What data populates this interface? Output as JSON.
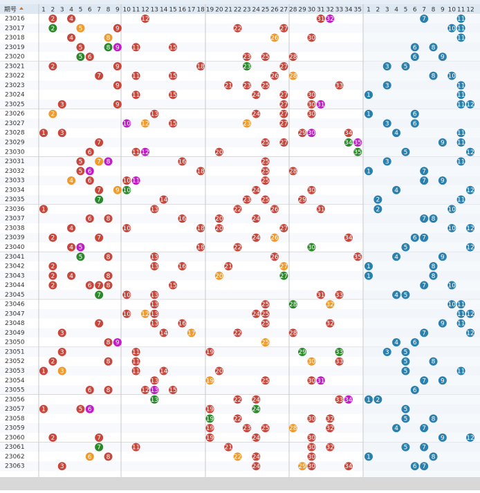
{
  "header": {
    "issue_label": "期号",
    "front_columns": [
      1,
      2,
      3,
      4,
      5,
      6,
      7,
      8,
      9,
      10,
      11,
      12,
      13,
      14,
      15,
      16,
      17,
      18,
      19,
      20,
      21,
      22,
      23,
      24,
      25,
      26,
      27,
      28,
      29,
      30,
      31,
      32,
      33,
      34,
      35
    ],
    "back_columns": [
      1,
      2,
      3,
      4,
      5,
      6,
      7,
      8,
      9,
      10,
      11,
      12
    ]
  },
  "front_color": "#c8473c",
  "back_color": "#2c80ad",
  "rows": [
    {
      "id": "23016",
      "front": [
        2,
        4,
        12,
        31,
        32
      ],
      "back": [
        7,
        11
      ],
      "special": {
        "31": "#c8473c",
        "32": "#c21cc8"
      }
    },
    {
      "id": "23017",
      "front": [
        2,
        5,
        9,
        22,
        27
      ],
      "back": [
        10,
        11
      ],
      "special": {
        "2": "#2a8a2a",
        "5": "#f09a2c"
      }
    },
    {
      "id": "23018",
      "front": [
        4,
        8,
        26,
        30
      ],
      "back": [
        11
      ],
      "special": {
        "8": "#f09a2c",
        "26": "#f09a2c"
      }
    },
    {
      "id": "23019",
      "front": [
        5,
        8,
        9,
        11,
        15
      ],
      "back": [
        6,
        8
      ],
      "special": {
        "8": "#2a8a2a",
        "9": "#c21cc8"
      }
    },
    {
      "id": "23020",
      "front": [
        5,
        6,
        23,
        25,
        28
      ],
      "back": [
        6,
        9
      ],
      "special": {
        "5": "#2a8a2a"
      }
    },
    {
      "id": "23021",
      "front": [
        2,
        9,
        18,
        23,
        27
      ],
      "back": [
        3,
        5
      ],
      "special": {
        "23": "#2a8a2a"
      }
    },
    {
      "id": "23022",
      "front": [
        7,
        11,
        15,
        26,
        28
      ],
      "back": [
        8,
        10
      ],
      "special": {
        "28": "#f09a2c"
      }
    },
    {
      "id": "23023",
      "front": [
        9,
        21,
        23,
        25,
        33
      ],
      "back": [
        3,
        11
      ],
      "special": {}
    },
    {
      "id": "23024",
      "front": [
        11,
        15,
        24,
        27,
        30
      ],
      "back": [
        1,
        11
      ],
      "special": {}
    },
    {
      "id": "23025",
      "front": [
        3,
        9,
        27,
        30,
        31
      ],
      "back": [
        11,
        12
      ],
      "special": {
        "31": "#c21cc8"
      }
    },
    {
      "id": "23026",
      "front": [
        2,
        13,
        24,
        27,
        30
      ],
      "back": [
        1,
        6
      ],
      "special": {
        "2": "#f09a2c"
      }
    },
    {
      "id": "23027",
      "front": [
        10,
        12,
        15,
        23,
        27
      ],
      "back": [
        3,
        6
      ],
      "special": {
        "10": "#c21cc8",
        "12": "#f09a2c",
        "23": "#f09a2c"
      }
    },
    {
      "id": "23028",
      "front": [
        1,
        3,
        29,
        30,
        34
      ],
      "back": [
        4,
        11
      ],
      "special": {
        "30": "#c21cc8"
      }
    },
    {
      "id": "23029",
      "front": [
        7,
        25,
        27,
        34,
        35
      ],
      "back": [
        9,
        11
      ],
      "special": {
        "34": "#2a8a2a",
        "35": "#c21cc8"
      }
    },
    {
      "id": "23030",
      "front": [
        6,
        11,
        12,
        20,
        35
      ],
      "back": [
        5,
        12
      ],
      "special": {
        "12": "#c21cc8",
        "35": "#2a8a2a"
      }
    },
    {
      "id": "23031",
      "front": [
        5,
        7,
        8,
        16,
        25
      ],
      "back": [
        3,
        11
      ],
      "special": {
        "7": "#f09a2c",
        "8": "#c21cc8"
      }
    },
    {
      "id": "23032",
      "front": [
        5,
        6,
        18,
        25,
        28
      ],
      "back": [
        1,
        7
      ],
      "special": {
        "6": "#c21cc8"
      }
    },
    {
      "id": "23033",
      "front": [
        4,
        6,
        10,
        11,
        25
      ],
      "back": [
        7,
        9
      ],
      "special": {
        "4": "#f09a2c",
        "11": "#c21cc8"
      }
    },
    {
      "id": "23034",
      "front": [
        7,
        9,
        10,
        24,
        30
      ],
      "back": [
        4,
        12
      ],
      "special": {
        "9": "#f09a2c",
        "10": "#2a8a2a"
      }
    },
    {
      "id": "23035",
      "front": [
        7,
        14,
        23,
        25,
        29
      ],
      "back": [
        2,
        11
      ],
      "special": {
        "7": "#2a8a2a"
      }
    },
    {
      "id": "23036",
      "front": [
        1,
        13,
        22,
        26,
        31
      ],
      "back": [
        2,
        10
      ],
      "special": {}
    },
    {
      "id": "23037",
      "front": [
        6,
        8,
        16,
        20,
        24
      ],
      "back": [
        7,
        8
      ],
      "special": {}
    },
    {
      "id": "23038",
      "front": [
        4,
        10,
        18,
        20,
        27
      ],
      "back": [
        10,
        12
      ],
      "special": {}
    },
    {
      "id": "23039",
      "front": [
        2,
        7,
        24,
        26,
        34
      ],
      "back": [
        6,
        7
      ],
      "special": {
        "26": "#f09a2c"
      }
    },
    {
      "id": "23040",
      "front": [
        4,
        5,
        18,
        22,
        30
      ],
      "back": [
        5,
        12
      ],
      "special": {
        "5": "#c21cc8",
        "30": "#2a8a2a"
      }
    },
    {
      "id": "23041",
      "front": [
        5,
        8,
        13,
        26,
        35
      ],
      "back": [
        4,
        9
      ],
      "special": {
        "5": "#2a8a2a"
      }
    },
    {
      "id": "23042",
      "front": [
        2,
        13,
        16,
        21,
        27
      ],
      "back": [
        1,
        8
      ],
      "special": {
        "27": "#f09a2c"
      }
    },
    {
      "id": "23043",
      "front": [
        2,
        4,
        8,
        20,
        27
      ],
      "back": [
        1,
        8
      ],
      "special": {
        "20": "#f09a2c",
        "27": "#2a8a2a"
      }
    },
    {
      "id": "23044",
      "front": [
        2,
        6,
        7,
        8,
        15
      ],
      "back": [
        7,
        10
      ],
      "special": {}
    },
    {
      "id": "23045",
      "front": [
        7,
        10,
        13,
        31,
        33
      ],
      "back": [
        4,
        5
      ],
      "special": {
        "7": "#2a8a2a"
      }
    },
    {
      "id": "23046",
      "front": [
        13,
        25,
        28,
        32
      ],
      "back": [
        10,
        11
      ],
      "special": {
        "28": "#2a8a2a",
        "32": "#f09a2c"
      }
    },
    {
      "id": "23047",
      "front": [
        10,
        12,
        13,
        24,
        25
      ],
      "back": [
        11,
        12
      ],
      "special": {
        "12": "#f09a2c"
      }
    },
    {
      "id": "23048",
      "front": [
        7,
        13,
        16,
        25,
        32
      ],
      "back": [
        9,
        11
      ],
      "special": {}
    },
    {
      "id": "23049",
      "front": [
        3,
        14,
        17,
        22,
        28
      ],
      "back": [
        7,
        12
      ],
      "special": {
        "17": "#f09a2c"
      }
    },
    {
      "id": "23050",
      "front": [
        8,
        9,
        25
      ],
      "back": [
        4,
        6
      ],
      "special": {
        "9": "#c21cc8",
        "25": "#f09a2c"
      }
    },
    {
      "id": "23051",
      "front": [
        3,
        11,
        19,
        29,
        33
      ],
      "back": [
        3,
        5
      ],
      "special": {
        "29": "#2a8a2a",
        "33": "#2a8a2a"
      }
    },
    {
      "id": "23052",
      "front": [
        2,
        8,
        11,
        30,
        33
      ],
      "back": [
        5,
        8
      ],
      "special": {
        "30": "#f09a2c"
      }
    },
    {
      "id": "23053",
      "front": [
        1,
        3,
        11,
        14,
        20
      ],
      "back": [
        5,
        11
      ],
      "special": {
        "3": "#f09a2c"
      }
    },
    {
      "id": "23054",
      "front": [
        13,
        19,
        25,
        30,
        31
      ],
      "back": [
        7,
        9
      ],
      "special": {
        "19": "#f09a2c",
        "31": "#c21cc8"
      }
    },
    {
      "id": "23055",
      "front": [
        6,
        8,
        12,
        13,
        15
      ],
      "back": [
        6
      ],
      "special": {
        "13": "#c21cc8"
      }
    },
    {
      "id": "23056",
      "front": [
        13,
        22,
        24,
        33,
        34
      ],
      "back": [
        1,
        2
      ],
      "special": {
        "13": "#2a8a2a",
        "34": "#c21cc8"
      }
    },
    {
      "id": "23057",
      "front": [
        1,
        5,
        6,
        19,
        24
      ],
      "back": [
        5
      ],
      "special": {
        "6": "#c21cc8",
        "24": "#2a8a2a"
      }
    },
    {
      "id": "23058",
      "front": [
        19,
        22,
        30,
        32
      ],
      "back": [
        5,
        8
      ],
      "special": {
        "19": "#2a8a2a"
      }
    },
    {
      "id": "23059",
      "front": [
        19,
        23,
        25,
        28,
        32
      ],
      "back": [
        4,
        7
      ],
      "special": {
        "28": "#f09a2c"
      }
    },
    {
      "id": "23060",
      "front": [
        2,
        7,
        19,
        24,
        30
      ],
      "back": [
        9,
        12
      ],
      "special": {}
    },
    {
      "id": "23061",
      "front": [
        7,
        11,
        21,
        30,
        32
      ],
      "back": [
        5,
        7
      ],
      "special": {
        "7": "#2a8a2a"
      }
    },
    {
      "id": "23062",
      "front": [
        6,
        8,
        22,
        24,
        30
      ],
      "back": [
        1,
        8
      ],
      "special": {
        "6": "#f09a2c",
        "22": "#f09a2c"
      }
    },
    {
      "id": "23063",
      "front": [
        3,
        24,
        29,
        30,
        34
      ],
      "back": [
        6,
        7
      ],
      "special": {
        "29": "#f09a2c"
      }
    }
  ]
}
